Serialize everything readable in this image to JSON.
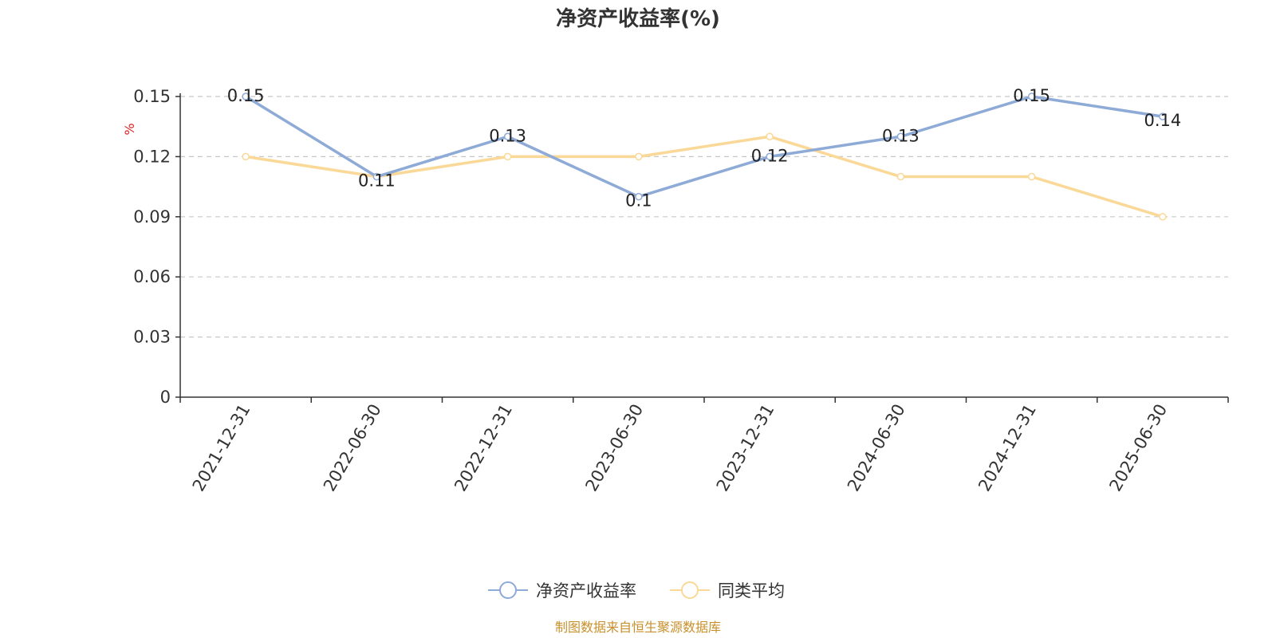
{
  "chart_data": {
    "type": "line",
    "title": "净资产收益率(%)",
    "ylabel": "%",
    "xlabel": "",
    "categories": [
      "2021-12-31",
      "2022-06-30",
      "2022-12-31",
      "2023-06-30",
      "2023-12-31",
      "2024-06-30",
      "2024-12-31",
      "2025-06-30"
    ],
    "ylim": [
      0,
      0.15
    ],
    "yticks": [
      "0",
      "0.03",
      "0.06",
      "0.09",
      "0.12",
      "0.15"
    ],
    "grid": "horizontal-dashed",
    "legend_position": "bottom",
    "series": [
      {
        "name": "净资产收益率",
        "color": "#8eaad6",
        "values": [
          0.15,
          0.11,
          0.13,
          0.1,
          0.12,
          0.13,
          0.15,
          0.14
        ],
        "labels": [
          "0.15",
          "0.11",
          "0.13",
          "0.1",
          "0.12",
          "0.13",
          "0.15",
          "0.14"
        ]
      },
      {
        "name": "同类平均",
        "color": "#fad897",
        "values": [
          0.12,
          0.11,
          0.12,
          0.12,
          0.13,
          0.11,
          0.11,
          0.09
        ]
      }
    ]
  },
  "source_note": "制图数据来自恒生聚源数据库"
}
